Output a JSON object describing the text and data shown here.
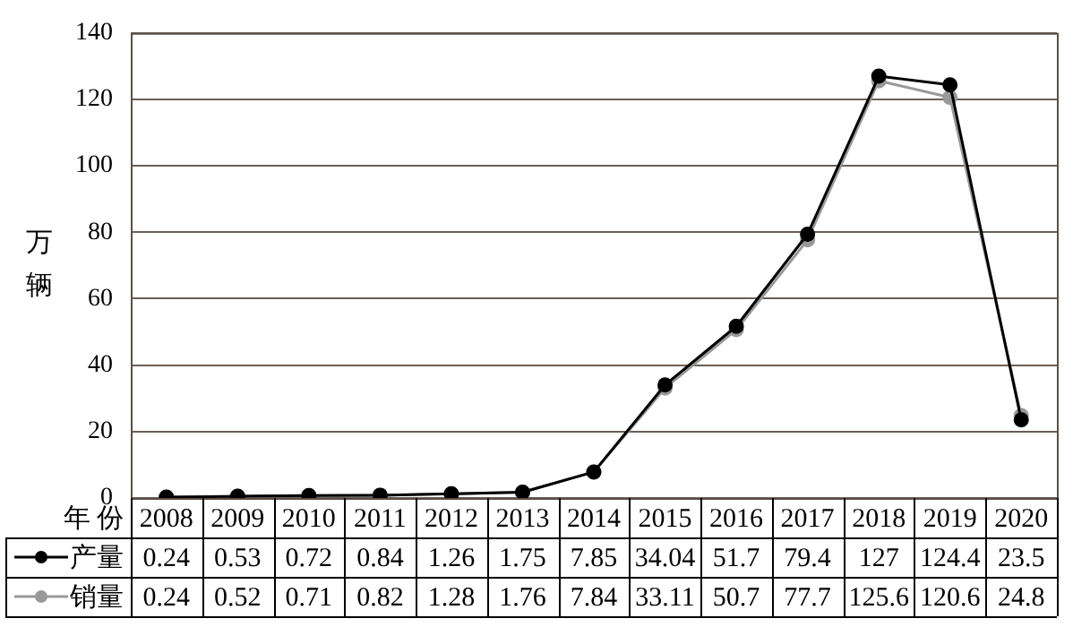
{
  "chart_data": {
    "type": "line",
    "ylabel": "万辆",
    "xlabel": "年 份",
    "categories": [
      "2008",
      "2009",
      "2010",
      "2011",
      "2012",
      "2013",
      "2014",
      "2015",
      "2016",
      "2017",
      "2018",
      "2019",
      "2020"
    ],
    "series": [
      {
        "name": "产量",
        "color": "#000000",
        "values": [
          0.24,
          0.53,
          0.72,
          0.84,
          1.26,
          1.75,
          7.85,
          34.04,
          51.7,
          79.4,
          127,
          124.4,
          23.5
        ]
      },
      {
        "name": "销量",
        "color": "#999999",
        "values": [
          0.24,
          0.52,
          0.71,
          0.82,
          1.28,
          1.76,
          7.84,
          33.11,
          50.7,
          77.7,
          125.6,
          120.6,
          24.8
        ]
      }
    ],
    "ylim": [
      0,
      140
    ],
    "yticks": [
      0,
      20,
      40,
      60,
      80,
      100,
      120,
      140
    ],
    "grid": "y",
    "legend": "bottom left",
    "marker": "circle",
    "line_style": "solid",
    "data_labels": true
  }
}
